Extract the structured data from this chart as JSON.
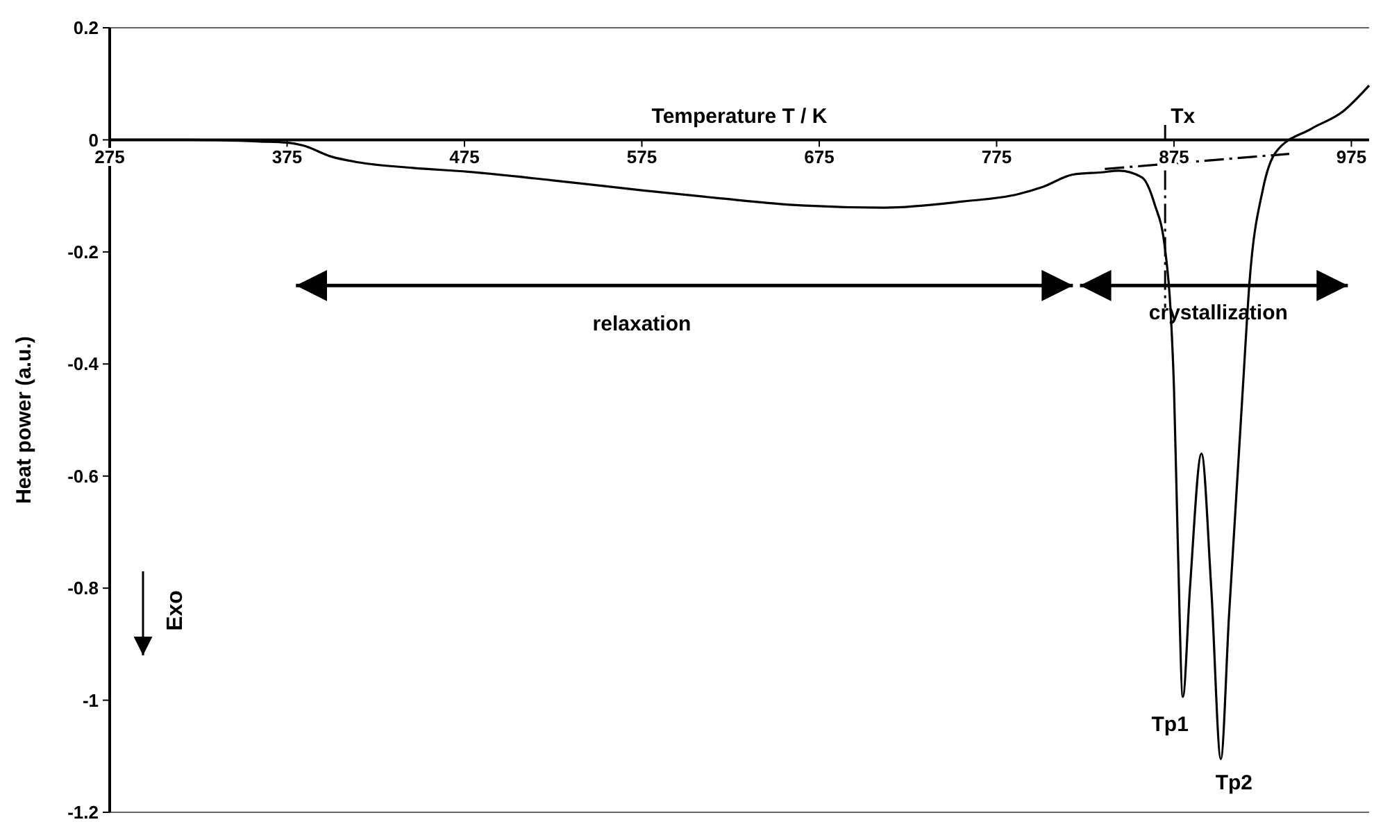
{
  "chart_data": {
    "type": "line",
    "xlabel": "Temperature T / K",
    "ylabel": "Heat power (a.u.)",
    "xlim": [
      275,
      985
    ],
    "ylim": [
      -1.2,
      0.2
    ],
    "xticks": [
      275,
      375,
      475,
      575,
      675,
      775,
      875,
      975
    ],
    "yticks": [
      {
        "value": 0.2,
        "label": "0.2"
      },
      0,
      {
        "value": -0.2,
        "label": "-0.2"
      },
      {
        "value": -0.4,
        "label": "-0.4"
      },
      {
        "value": -0.6,
        "label": "-0.6"
      },
      {
        "value": -0.8,
        "label": "-0.8"
      },
      -1,
      {
        "value": -1.2,
        "label": "-1.2"
      }
    ],
    "grid": false,
    "series": [
      {
        "color": "#000000",
        "line_style": "solid",
        "x": [
          275,
          320,
          360,
          375,
          384,
          400,
          415,
          446,
          477,
          524,
          575,
          618,
          665,
          712,
          756,
          787,
          801,
          818,
          834,
          844,
          857,
          864,
          870,
          873,
          875,
          877,
          880,
          884,
          890.5,
          896,
          901.4,
          906,
          913.8,
          917.6,
          925,
          932.4,
          952.5,
          970,
          985
        ],
        "values": [
          0,
          0,
          -0.003,
          -0.005,
          -0.01,
          -0.03,
          -0.04,
          -0.05,
          -0.057,
          -0.072,
          -0.09,
          -0.104,
          -0.117,
          -0.121,
          -0.11,
          -0.097,
          -0.084,
          -0.062,
          -0.058,
          -0.055,
          -0.067,
          -0.114,
          -0.196,
          -0.3,
          -0.444,
          -0.7,
          -0.994,
          -0.8,
          -0.56,
          -0.8,
          -1.105,
          -0.85,
          -0.444,
          -0.253,
          -0.09,
          -0.022,
          0.02,
          0.05,
          0.097
        ]
      },
      {
        "color": "#000000",
        "line_style": "dashed",
        "x": [
          836,
          940
        ],
        "values": [
          -0.052,
          -0.025
        ]
      }
    ],
    "ref_lines": [
      {
        "axis": "x",
        "value": 870,
        "label": "Tx",
        "line_style": "dashed",
        "color": "#000000"
      }
    ],
    "annotations": [
      "relaxation",
      "crystallization",
      {
        "text": "Tp1",
        "x": 879,
        "y": -1.0
      },
      {
        "text": "Tp2",
        "x": 901,
        "y": -1.105
      },
      "Exo"
    ]
  }
}
